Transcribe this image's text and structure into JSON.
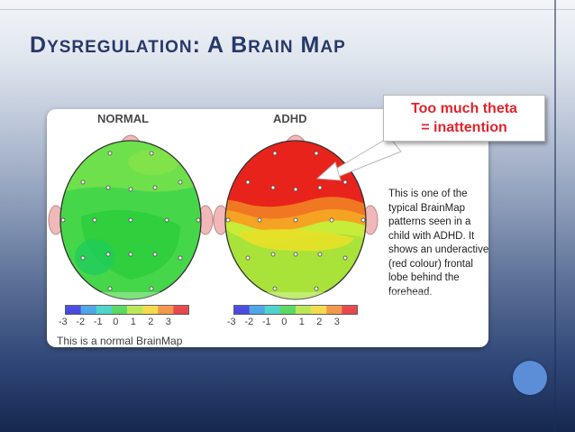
{
  "slide": {
    "title_first_initial": "D",
    "title_first_rest": "YSREGULATION",
    "title_colon": ":",
    "title_a": "A",
    "title_b_initial": "B",
    "title_b_rest": "RAIN",
    "title_m_initial": "M",
    "title_m_rest": "AP"
  },
  "brainmap": {
    "normal_label": "NORMAL",
    "adhd_label": "ADHD",
    "scale_ticks": [
      "-3",
      "-2",
      "-1",
      "0",
      "1",
      "2",
      "3"
    ],
    "scale_colors": [
      "#1a1ad8",
      "#1f8fe0",
      "#20c8c0",
      "#2ecf3a",
      "#a8e22a",
      "#f0d21c",
      "#f07d1a",
      "#e0181c"
    ],
    "caption": "This is a normal BrainMap",
    "description": "This is one of the typical BrainMap patterns seen in a child with ADHD. It shows an underactive (red colour) frontal lobe behind the forehead."
  },
  "callout": {
    "line1": "Too much theta",
    "line2": "= inattention"
  }
}
